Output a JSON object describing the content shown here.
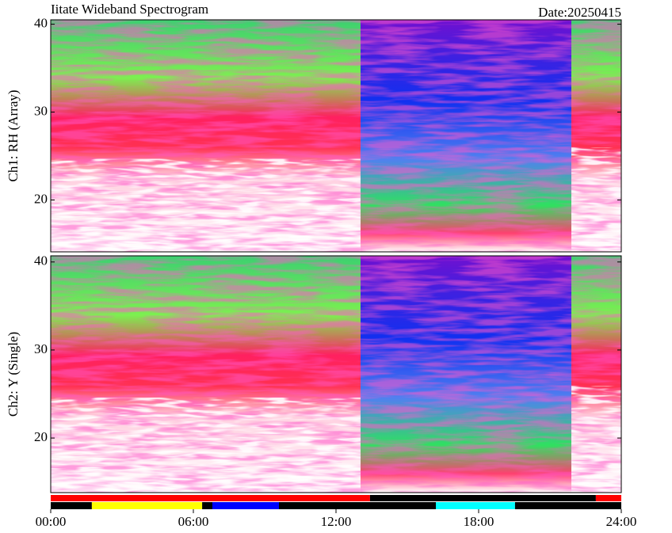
{
  "date": "Date:20250415",
  "chart_data": [
    {
      "type": "spectrogram",
      "title": "Iitate Wideband Spectrogram",
      "ylabel": "Ch1: RH (Array)",
      "ylim": [
        14.1,
        40.5
      ],
      "yticks": [
        20,
        30,
        40
      ]
    },
    {
      "type": "spectrogram",
      "ylabel": "Ch2: Y (Single)",
      "ylim": [
        13.8,
        40.7
      ],
      "yticks": [
        20,
        30,
        40
      ]
    },
    {
      "type": "timeline",
      "xlim": [
        0,
        24
      ],
      "xticks": [
        {
          "value": 0,
          "label": "00:00"
        },
        {
          "value": 6,
          "label": "06:00"
        },
        {
          "value": 12,
          "label": "12:00"
        },
        {
          "value": 18,
          "label": "18:00"
        },
        {
          "value": 24,
          "label": "24:00"
        }
      ],
      "rows": [
        [
          {
            "start": 0,
            "end": 13.43,
            "color": "#ff0000"
          },
          {
            "start": 13.43,
            "end": 22.93,
            "color": "#000000"
          },
          {
            "start": 22.93,
            "end": 24,
            "color": "#ff0000"
          }
        ],
        [
          {
            "start": 0,
            "end": 1.73,
            "color": "#000000"
          },
          {
            "start": 1.73,
            "end": 6.37,
            "color": "#ffff00"
          },
          {
            "start": 6.37,
            "end": 6.8,
            "color": "#000000"
          },
          {
            "start": 6.8,
            "end": 9.6,
            "color": "#0000ff"
          },
          {
            "start": 9.6,
            "end": 16.2,
            "color": "#000000"
          },
          {
            "start": 16.2,
            "end": 19.53,
            "color": "#00ffff"
          },
          {
            "start": 19.53,
            "end": 24,
            "color": "#000000"
          }
        ]
      ]
    }
  ]
}
